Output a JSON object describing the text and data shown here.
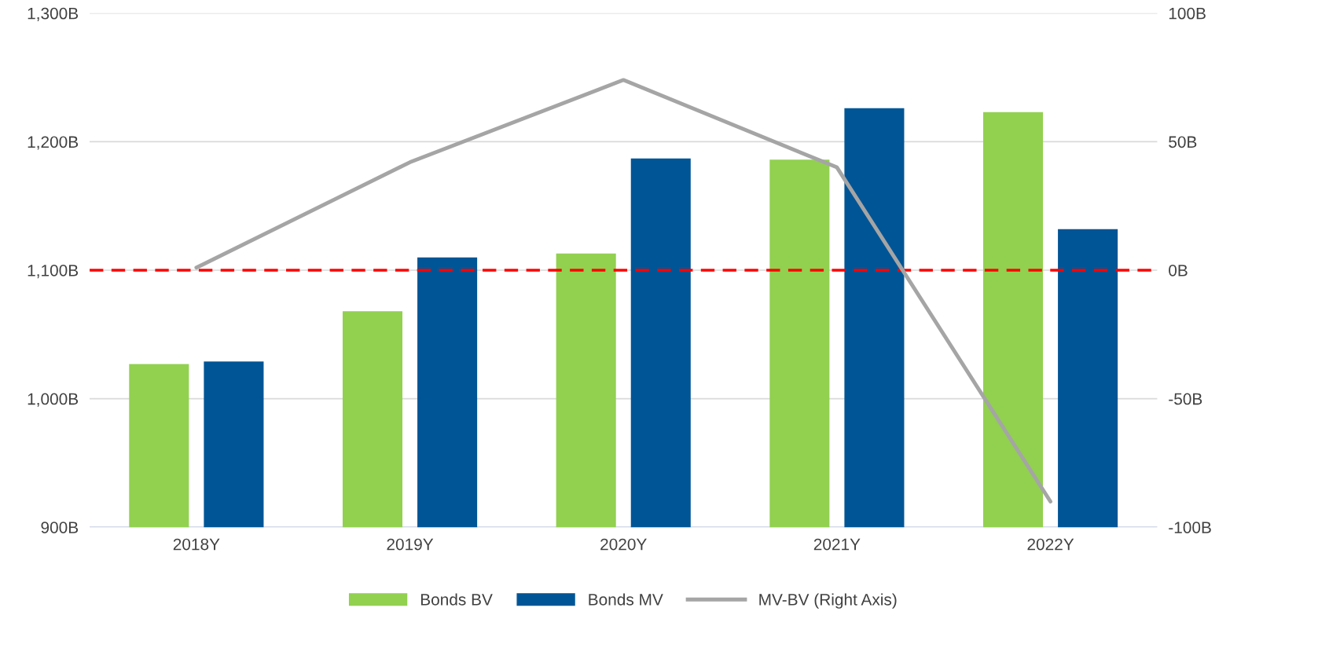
{
  "chart_data": {
    "type": "bar",
    "categories": [
      "2018Y",
      "2019Y",
      "2020Y",
      "2021Y",
      "2022Y"
    ],
    "series": [
      {
        "name": "Bonds BV",
        "color": "#92d050",
        "values": [
          1027,
          1068,
          1113,
          1186,
          1223
        ]
      },
      {
        "name": "Bonds MV",
        "color": "#005596",
        "values": [
          1029,
          1110,
          1187,
          1226,
          1132
        ]
      },
      {
        "name": "MV-BV (Right Axis)",
        "type": "line",
        "axis": "y2",
        "color": "#a5a5a5",
        "values": [
          1,
          42,
          74,
          40,
          -90
        ]
      }
    ],
    "ylim": [
      900,
      1300
    ],
    "yticks": [
      {
        "value": 900,
        "label": "900B"
      },
      {
        "value": 1000,
        "label": "1,000B"
      },
      {
        "value": 1100,
        "label": "1,100B"
      },
      {
        "value": 1200,
        "label": "1,200B"
      },
      {
        "value": 1300,
        "label": "1,300B"
      }
    ],
    "y2lim": [
      -100,
      100
    ],
    "y2ticks": [
      {
        "value": -100,
        "label": "-100B"
      },
      {
        "value": -50,
        "label": "-50B"
      },
      {
        "value": 0,
        "label": "0B"
      },
      {
        "value": 50,
        "label": "50B"
      },
      {
        "value": 100,
        "label": "100B"
      }
    ],
    "ref_lines": [
      {
        "axis": "y2",
        "value": 0,
        "color": "#ff0000",
        "line_style": "dashed"
      }
    ],
    "grid": "y",
    "legend": "bottom"
  }
}
